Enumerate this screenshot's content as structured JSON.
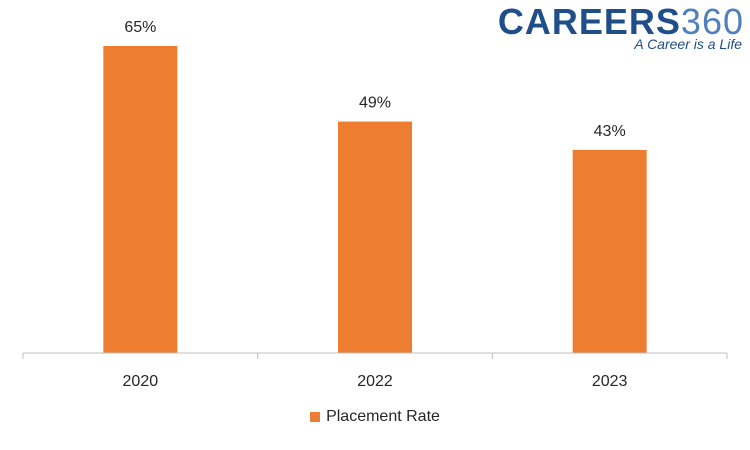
{
  "brand": {
    "name_bold": "CAREERS",
    "name_thin": "360",
    "tagline": "A Career is a Life"
  },
  "colors": {
    "bar": "#ED7D31",
    "axis": "#bfbfbf",
    "text": "#262626",
    "brand": "#1f4e89"
  },
  "chart_data": {
    "type": "bar",
    "categories": [
      "2020",
      "2022",
      "2023"
    ],
    "series": [
      {
        "name": "Placement Rate",
        "values": [
          65,
          49,
          43
        ]
      }
    ],
    "data_labels": [
      "65%",
      "49%",
      "43%"
    ],
    "value_unit": "%",
    "ylim": [
      0,
      65
    ],
    "grid": false,
    "legend_position": "bottom",
    "title": "",
    "xlabel": "",
    "ylabel": ""
  }
}
